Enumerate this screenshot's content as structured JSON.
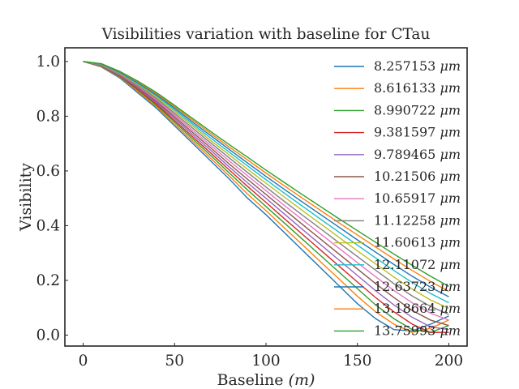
{
  "chart_data": {
    "type": "line",
    "title": "Visibilities variation with baseline for CTau",
    "xlabel": "Baseline (m)",
    "xlabel_main": "Baseline ",
    "xlabel_unit": "(m)",
    "ylabel": "Visibility",
    "xlim": [
      -10,
      210
    ],
    "ylim": [
      -0.04,
      1.05
    ],
    "xticks": [
      0,
      50,
      100,
      150,
      200
    ],
    "xtick_labels": [
      "0",
      "50",
      "100",
      "150",
      "200"
    ],
    "yticks": [
      0.0,
      0.2,
      0.4,
      0.6,
      0.8,
      1.0
    ],
    "ytick_labels": [
      "0.0",
      "0.2",
      "0.4",
      "0.6",
      "0.8",
      "1.0"
    ],
    "grid": false,
    "legend_position": "top-right",
    "x": [
      0,
      10,
      20,
      30,
      40,
      50,
      60,
      70,
      80,
      90,
      100,
      110,
      120,
      130,
      140,
      150,
      160,
      170,
      180,
      190,
      200
    ],
    "series": [
      {
        "name": "8.257153 μm",
        "name_value": "8.257153 ",
        "name_unit": "μm",
        "color": "#1f77b4",
        "values": [
          1.0,
          0.98,
          0.94,
          0.885,
          0.83,
          0.765,
          0.7,
          0.635,
          0.57,
          0.5,
          0.44,
          0.375,
          0.31,
          0.245,
          0.18,
          0.115,
          0.06,
          0.02,
          0.015,
          0.04,
          0.07
        ]
      },
      {
        "name": "8.616133 μm",
        "name_value": "8.616133 ",
        "name_unit": "μm",
        "color": "#ff7f0e",
        "values": [
          1.0,
          0.981,
          0.943,
          0.89,
          0.835,
          0.772,
          0.708,
          0.645,
          0.581,
          0.515,
          0.455,
          0.392,
          0.33,
          0.267,
          0.205,
          0.142,
          0.085,
          0.04,
          0.01,
          0.025,
          0.055
        ]
      },
      {
        "name": "8.990722 μm",
        "name_value": "8.990722 ",
        "name_unit": "μm",
        "color": "#2ca02c",
        "values": [
          1.0,
          0.982,
          0.945,
          0.895,
          0.84,
          0.779,
          0.716,
          0.655,
          0.592,
          0.53,
          0.47,
          0.41,
          0.35,
          0.29,
          0.23,
          0.17,
          0.11,
          0.06,
          0.02,
          0.01,
          0.035
        ]
      },
      {
        "name": "9.381597 μm",
        "name_value": "9.381597 ",
        "name_unit": "μm",
        "color": "#d62728",
        "values": [
          1.0,
          0.983,
          0.947,
          0.898,
          0.845,
          0.785,
          0.724,
          0.664,
          0.603,
          0.543,
          0.485,
          0.426,
          0.368,
          0.31,
          0.252,
          0.194,
          0.137,
          0.085,
          0.04,
          0.01,
          0.01
        ]
      },
      {
        "name": "9.789465 μm",
        "name_value": "9.789465 ",
        "name_unit": "μm",
        "color": "#9467bd",
        "values": [
          1.0,
          0.984,
          0.949,
          0.902,
          0.85,
          0.792,
          0.732,
          0.674,
          0.614,
          0.556,
          0.5,
          0.443,
          0.386,
          0.33,
          0.274,
          0.218,
          0.162,
          0.11,
          0.065,
          0.03,
          0.02
        ]
      },
      {
        "name": "10.21506 μm",
        "name_value": "10.21506 ",
        "name_unit": "μm",
        "color": "#8c564b",
        "values": [
          1.0,
          0.985,
          0.951,
          0.906,
          0.855,
          0.798,
          0.74,
          0.683,
          0.625,
          0.569,
          0.514,
          0.459,
          0.404,
          0.35,
          0.296,
          0.242,
          0.188,
          0.137,
          0.09,
          0.055,
          0.035
        ]
      },
      {
        "name": "10.65917 μm",
        "name_value": "10.65917 ",
        "name_unit": "μm",
        "color": "#e377c2",
        "values": [
          1.0,
          0.986,
          0.953,
          0.909,
          0.86,
          0.805,
          0.748,
          0.692,
          0.636,
          0.582,
          0.528,
          0.474,
          0.421,
          0.369,
          0.317,
          0.265,
          0.213,
          0.163,
          0.118,
          0.08,
          0.055
        ]
      },
      {
        "name": "11.12258 μm",
        "name_value": "11.12258 ",
        "name_unit": "μm",
        "color": "#7f7f7f",
        "values": [
          1.0,
          0.987,
          0.955,
          0.912,
          0.865,
          0.811,
          0.756,
          0.701,
          0.647,
          0.594,
          0.541,
          0.489,
          0.438,
          0.388,
          0.337,
          0.287,
          0.237,
          0.188,
          0.143,
          0.105,
          0.075
        ]
      },
      {
        "name": "11.60613 μm",
        "name_value": "11.60613 ",
        "name_unit": "μm",
        "color": "#bcbd22",
        "values": [
          1.0,
          0.988,
          0.957,
          0.916,
          0.87,
          0.818,
          0.764,
          0.71,
          0.658,
          0.606,
          0.555,
          0.505,
          0.455,
          0.406,
          0.357,
          0.308,
          0.26,
          0.212,
          0.168,
          0.128,
          0.098
        ]
      },
      {
        "name": "12.11072 μm",
        "name_value": "12.11072 ",
        "name_unit": "μm",
        "color": "#17becf",
        "values": [
          1.0,
          0.989,
          0.959,
          0.919,
          0.875,
          0.824,
          0.771,
          0.719,
          0.668,
          0.618,
          0.568,
          0.519,
          0.471,
          0.423,
          0.376,
          0.329,
          0.282,
          0.236,
          0.192,
          0.152,
          0.118
        ]
      },
      {
        "name": "12.63723 μm",
        "name_value": "12.63723 ",
        "name_unit": "μm",
        "color": "#1f77b4",
        "values": [
          1.0,
          0.99,
          0.961,
          0.922,
          0.879,
          0.83,
          0.778,
          0.728,
          0.678,
          0.629,
          0.58,
          0.533,
          0.486,
          0.44,
          0.394,
          0.348,
          0.303,
          0.258,
          0.215,
          0.175,
          0.14
        ]
      },
      {
        "name": "13.18664 μm",
        "name_value": "13.18664 ",
        "name_unit": "μm",
        "color": "#ff7f0e",
        "values": [
          1.0,
          0.991,
          0.963,
          0.925,
          0.883,
          0.835,
          0.785,
          0.736,
          0.687,
          0.64,
          0.592,
          0.546,
          0.5,
          0.455,
          0.41,
          0.366,
          0.322,
          0.278,
          0.236,
          0.196,
          0.16
        ]
      },
      {
        "name": "13.75993 μm",
        "name_value": "13.75993 ",
        "name_unit": "μm",
        "color": "#2ca02c",
        "values": [
          1.0,
          0.992,
          0.964,
          0.928,
          0.887,
          0.84,
          0.791,
          0.743,
          0.696,
          0.65,
          0.603,
          0.558,
          0.513,
          0.469,
          0.425,
          0.382,
          0.339,
          0.296,
          0.255,
          0.215,
          0.178
        ]
      }
    ]
  }
}
